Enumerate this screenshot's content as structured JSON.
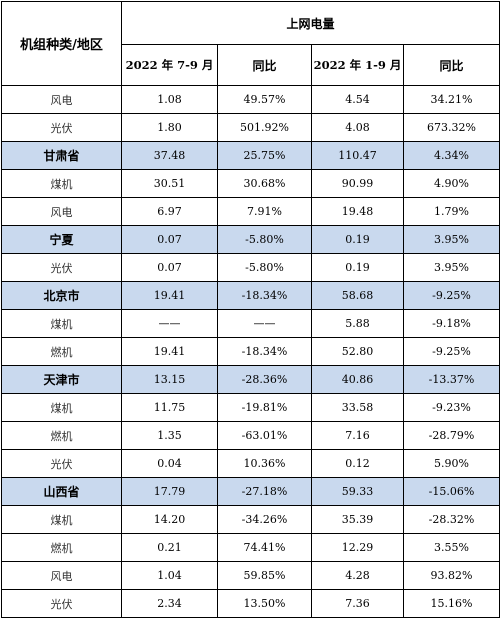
{
  "header": {
    "corner": "机组种类/地区",
    "group": "上网电量",
    "columns": [
      "2022 年 7-9 月",
      "同比",
      "2022 年 1-9 月",
      "同比"
    ]
  },
  "rows": [
    {
      "name": "风电",
      "is_region": false,
      "cells": [
        "1.08",
        "49.57%",
        "4.54",
        "34.21%"
      ]
    },
    {
      "name": "光伏",
      "is_region": false,
      "cells": [
        "1.80",
        "501.92%",
        "4.08",
        "673.32%"
      ]
    },
    {
      "name": "甘肃省",
      "is_region": true,
      "cells": [
        "37.48",
        "25.75%",
        "110.47",
        "4.34%"
      ]
    },
    {
      "name": "煤机",
      "is_region": false,
      "cells": [
        "30.51",
        "30.68%",
        "90.99",
        "4.90%"
      ]
    },
    {
      "name": "风电",
      "is_region": false,
      "cells": [
        "6.97",
        "7.91%",
        "19.48",
        "1.79%"
      ]
    },
    {
      "name": "宁夏",
      "is_region": true,
      "cells": [
        "0.07",
        "-5.80%",
        "0.19",
        "3.95%"
      ]
    },
    {
      "name": "光伏",
      "is_region": false,
      "cells": [
        "0.07",
        "-5.80%",
        "0.19",
        "3.95%"
      ]
    },
    {
      "name": "北京市",
      "is_region": true,
      "cells": [
        "19.41",
        "-18.34%",
        "58.68",
        "-9.25%"
      ]
    },
    {
      "name": "煤机",
      "is_region": false,
      "cells": [
        "——",
        "——",
        "5.88",
        "-9.18%"
      ]
    },
    {
      "name": "燃机",
      "is_region": false,
      "cells": [
        "19.41",
        "-18.34%",
        "52.80",
        "-9.25%"
      ]
    },
    {
      "name": "天津市",
      "is_region": true,
      "cells": [
        "13.15",
        "-28.36%",
        "40.86",
        "-13.37%"
      ]
    },
    {
      "name": "煤机",
      "is_region": false,
      "cells": [
        "11.75",
        "-19.81%",
        "33.58",
        "-9.23%"
      ]
    },
    {
      "name": "燃机",
      "is_region": false,
      "cells": [
        "1.35",
        "-63.01%",
        "7.16",
        "-28.79%"
      ]
    },
    {
      "name": "光伏",
      "is_region": false,
      "cells": [
        "0.04",
        "10.36%",
        "0.12",
        "5.90%"
      ]
    },
    {
      "name": "山西省",
      "is_region": true,
      "cells": [
        "17.79",
        "-27.18%",
        "59.33",
        "-15.06%"
      ]
    },
    {
      "name": "煤机",
      "is_region": false,
      "cells": [
        "14.20",
        "-34.26%",
        "35.39",
        "-28.32%"
      ]
    },
    {
      "name": "燃机",
      "is_region": false,
      "cells": [
        "0.21",
        "74.41%",
        "12.29",
        "3.55%"
      ]
    },
    {
      "name": "风电",
      "is_region": false,
      "cells": [
        "1.04",
        "59.85%",
        "4.28",
        "93.82%"
      ]
    },
    {
      "name": "光伏",
      "is_region": false,
      "cells": [
        "2.34",
        "13.50%",
        "7.36",
        "15.16%"
      ]
    }
  ],
  "colors": {
    "region_fill": "#c9d9ee",
    "border": "#000000"
  }
}
